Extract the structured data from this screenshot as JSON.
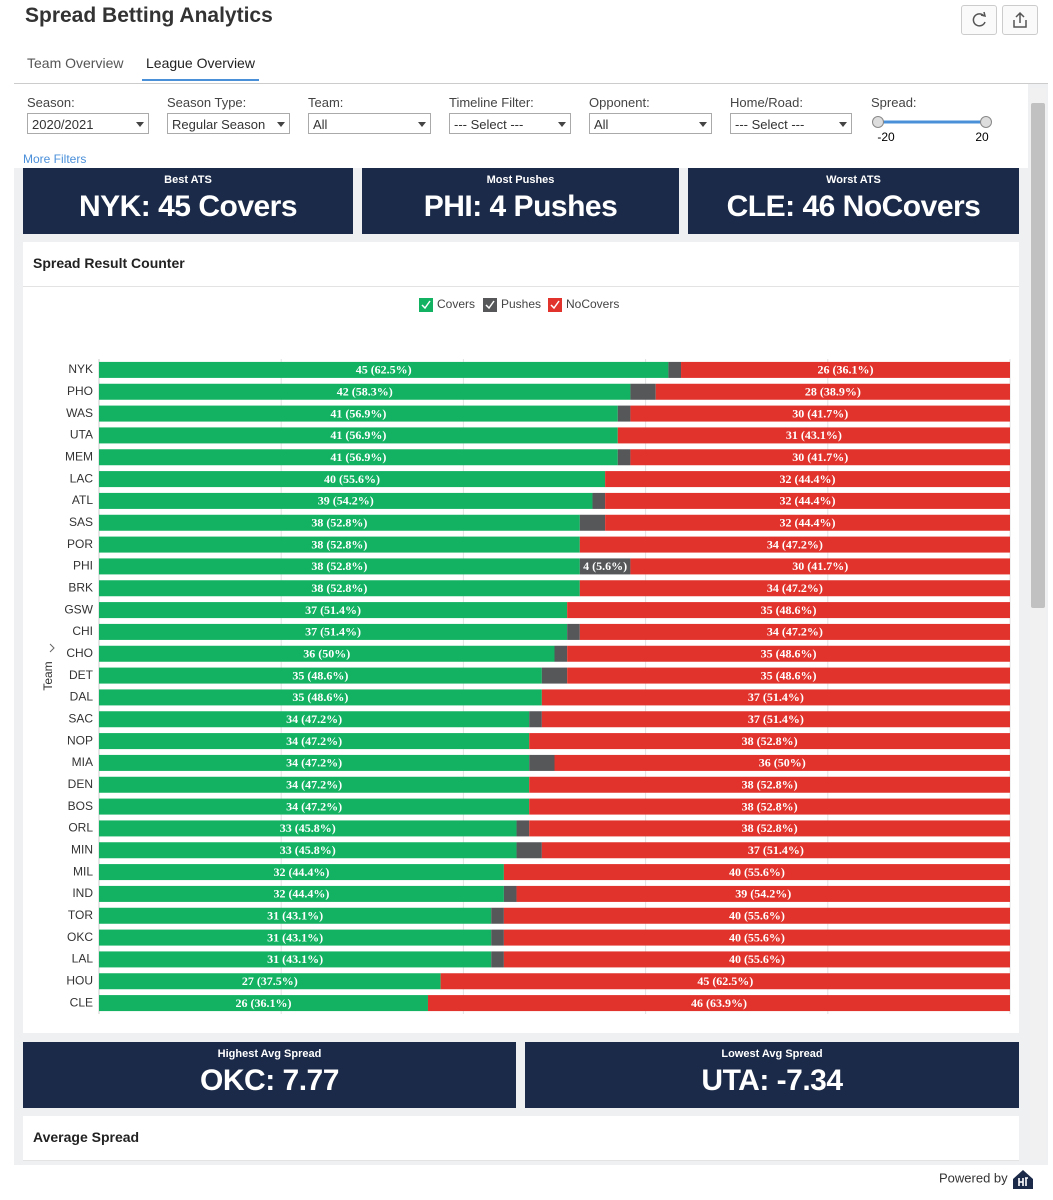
{
  "header": {
    "title": "Spread Betting Analytics"
  },
  "tabs": [
    "Team Overview",
    "League Overview"
  ],
  "filters": [
    {
      "label": "Season:",
      "value": "2020/2021"
    },
    {
      "label": "Season Type:",
      "value": "Regular Season"
    },
    {
      "label": "Team:",
      "value": "All"
    },
    {
      "label": "Timeline Filter:",
      "value": "--- Select ---"
    },
    {
      "label": "Opponent:",
      "value": "All"
    },
    {
      "label": "Home/Road:",
      "value": "--- Select ---"
    }
  ],
  "spread": {
    "label": "Spread:",
    "min": -20,
    "max": 20
  },
  "more_filters": "More Filters",
  "top_kpis": [
    {
      "title": "Best ATS",
      "value": "NYK: 45 Covers"
    },
    {
      "title": "Most Pushes",
      "value": "PHI: 4 Pushes"
    },
    {
      "title": "Worst ATS",
      "value": "CLE: 46 NoCovers"
    }
  ],
  "chart_data": {
    "type": "bar",
    "orientation": "horizontal",
    "stacked": true,
    "title": "Spread Result Counter",
    "y_label": "Team",
    "categories": [
      "NYK",
      "PHO",
      "WAS",
      "UTA",
      "MEM",
      "LAC",
      "ATL",
      "SAS",
      "POR",
      "PHI",
      "BRK",
      "GSW",
      "CHI",
      "CHO",
      "DET",
      "DAL",
      "SAC",
      "NOP",
      "MIA",
      "DEN",
      "BOS",
      "ORL",
      "MIN",
      "MIL",
      "IND",
      "TOR",
      "OKC",
      "LAL",
      "HOU",
      "CLE"
    ],
    "xlim": [
      0,
      72
    ],
    "xticks": [
      0,
      14.4,
      28.8,
      43.2,
      57.6,
      72
    ],
    "grid": true,
    "series": [
      {
        "name": "Covers",
        "color": "#12b262",
        "values": [
          45,
          42,
          41,
          41,
          41,
          40,
          39,
          38,
          38,
          38,
          38,
          37,
          37,
          36,
          35,
          35,
          34,
          34,
          34,
          34,
          34,
          33,
          33,
          32,
          32,
          31,
          31,
          31,
          27,
          26
        ],
        "value_labels": [
          "45 (62.5%)",
          "42 (58.3%)",
          "41 (56.9%)",
          "41 (56.9%)",
          "41 (56.9%)",
          "40 (55.6%)",
          "39 (54.2%)",
          "38 (52.8%)",
          "38 (52.8%)",
          "38 (52.8%)",
          "38 (52.8%)",
          "37 (51.4%)",
          "37 (51.4%)",
          "36 (50%)",
          "35 (48.6%)",
          "35 (48.6%)",
          "34 (47.2%)",
          "34 (47.2%)",
          "34 (47.2%)",
          "34 (47.2%)",
          "34 (47.2%)",
          "33 (45.8%)",
          "33 (45.8%)",
          "32 (44.4%)",
          "32 (44.4%)",
          "31 (43.1%)",
          "31 (43.1%)",
          "31 (43.1%)",
          "27 (37.5%)",
          "26 (36.1%)"
        ]
      },
      {
        "name": "Pushes",
        "color": "#555759",
        "values": [
          1,
          2,
          1,
          0,
          1,
          0,
          1,
          2,
          0,
          4,
          0,
          0,
          1,
          1,
          2,
          0,
          1,
          0,
          2,
          0,
          0,
          1,
          2,
          0,
          1,
          1,
          1,
          1,
          0,
          0
        ],
        "value_labels": [
          null,
          null,
          null,
          null,
          null,
          null,
          null,
          null,
          null,
          "4 (5.6%)",
          null,
          null,
          null,
          null,
          null,
          null,
          null,
          null,
          null,
          null,
          null,
          null,
          null,
          null,
          null,
          null,
          null,
          null,
          null,
          null
        ]
      },
      {
        "name": "NoCovers",
        "color": "#e1332c",
        "values": [
          26,
          28,
          30,
          31,
          30,
          32,
          32,
          32,
          34,
          30,
          34,
          35,
          34,
          35,
          35,
          37,
          37,
          38,
          36,
          38,
          38,
          38,
          37,
          40,
          39,
          40,
          40,
          40,
          45,
          46
        ],
        "value_labels": [
          "26 (36.1%)",
          "28 (38.9%)",
          "30 (41.7%)",
          "31 (43.1%)",
          "30 (41.7%)",
          "32 (44.4%)",
          "32 (44.4%)",
          "32 (44.4%)",
          "34 (47.2%)",
          "30 (41.7%)",
          "34 (47.2%)",
          "35 (48.6%)",
          "34 (47.2%)",
          "35 (48.6%)",
          "35 (48.6%)",
          "37 (51.4%)",
          "37 (51.4%)",
          "38 (52.8%)",
          "36 (50%)",
          "38 (52.8%)",
          "38 (52.8%)",
          "38 (52.8%)",
          "37 (51.4%)",
          "40 (55.6%)",
          "39 (54.2%)",
          "40 (55.6%)",
          "40 (55.6%)",
          "40 (55.6%)",
          "45 (62.5%)",
          "46 (63.9%)"
        ]
      }
    ]
  },
  "bottom_kpis": [
    {
      "title": "Highest Avg Spread",
      "value": "OKC: 7.77"
    },
    {
      "title": "Lowest Avg Spread",
      "value": "UTA: -7.34"
    }
  ],
  "next_section": "Average Spread",
  "footer": "Powered by"
}
